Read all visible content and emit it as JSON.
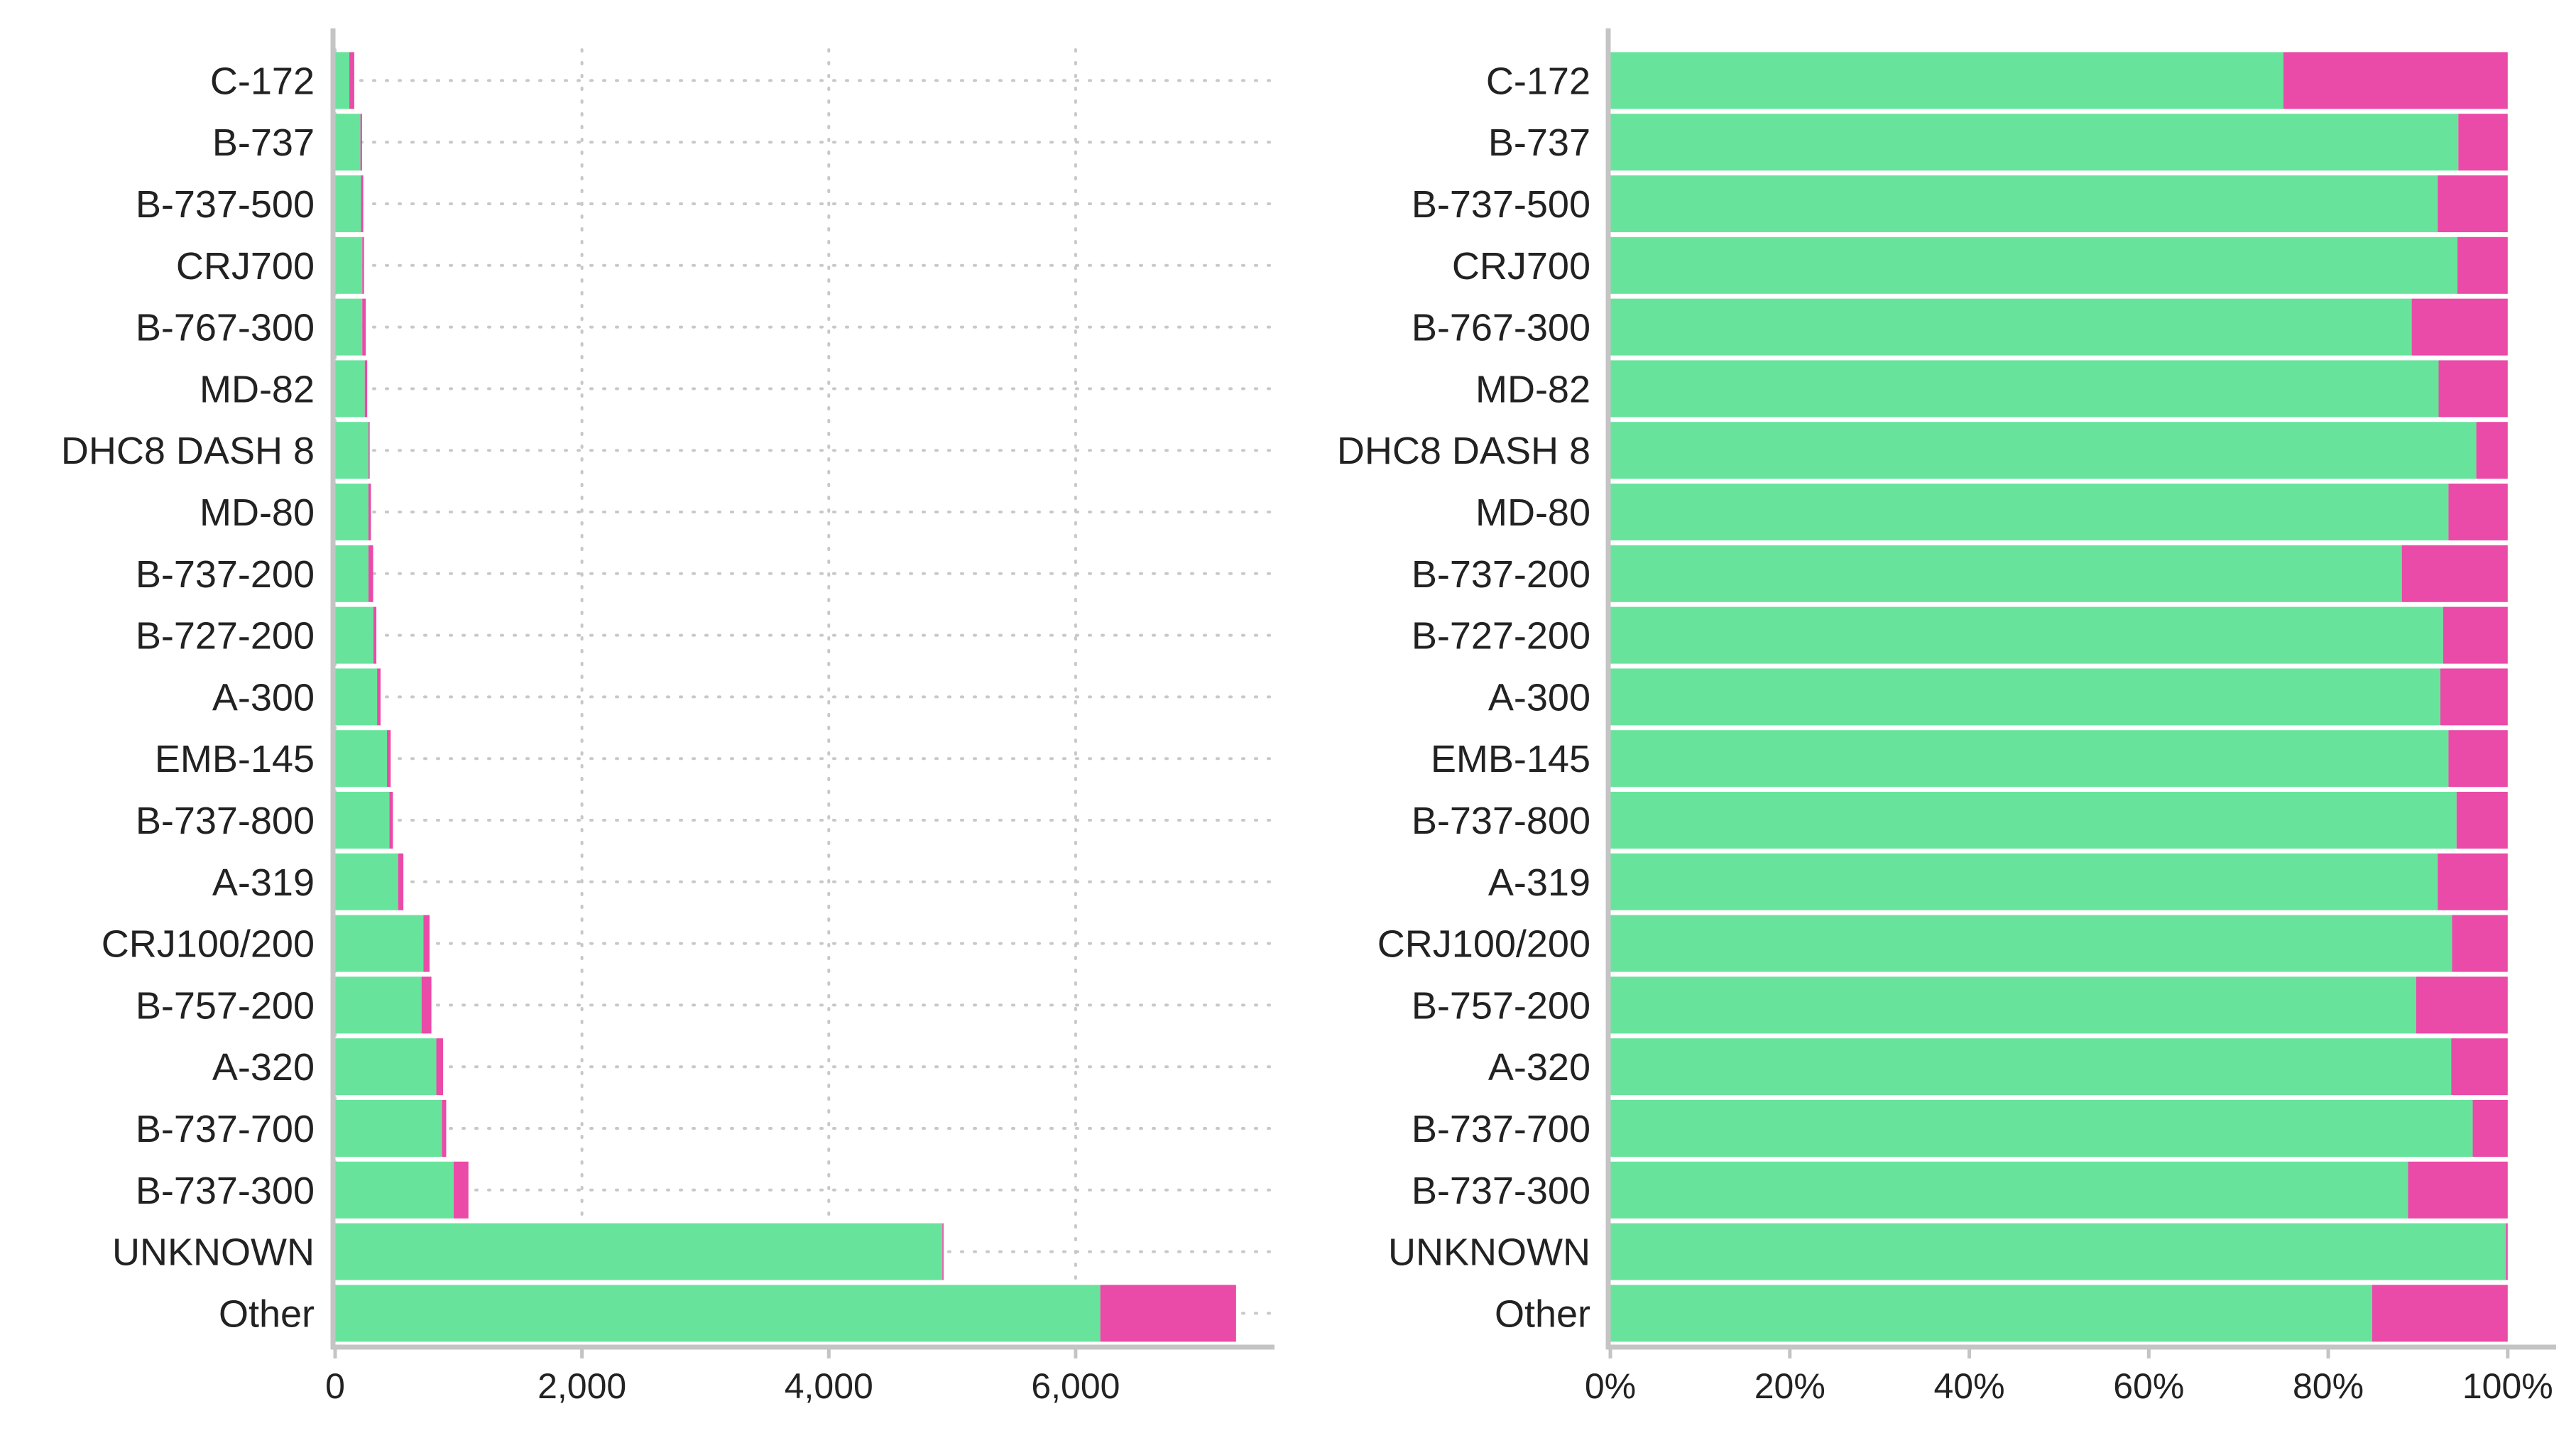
{
  "chart_data": [
    {
      "type": "bar",
      "orientation": "horizontal",
      "stacked": true,
      "title": "",
      "xlabel": "",
      "ylabel": "",
      "categories": [
        "C-172",
        "B-737",
        "B-737-500",
        "CRJ700",
        "B-767-300",
        "MD-82",
        "DHC8 DASH 8",
        "MD-80",
        "B-737-200",
        "B-727-200",
        "A-300",
        "EMB-145",
        "B-737-800",
        "A-319",
        "CRJ100/200",
        "B-757-200",
        "A-320",
        "B-737-700",
        "B-737-300",
        "UNKNOWN",
        "Other"
      ],
      "series": [
        {
          "color": "#68e39c",
          "values": [
            115,
            205,
            210,
            220,
            220,
            240,
            270,
            270,
            270,
            310,
            340,
            420,
            440,
            510,
            715,
            700,
            820,
            865,
            960,
            4920,
            6200
          ]
        },
        {
          "color": "#ea4aa8",
          "values": [
            40,
            13,
            18,
            14,
            28,
            20,
            10,
            20,
            38,
            24,
            28,
            30,
            28,
            43,
            50,
            80,
            55,
            35,
            120,
            10,
            1100
          ]
        }
      ],
      "xlim": [
        0,
        7600
      ],
      "xticks": [
        0,
        2000,
        4000,
        6000
      ],
      "xtick_labels": [
        "0",
        "2,000",
        "4,000",
        "6,000"
      ],
      "grid": "vertical dotted"
    },
    {
      "type": "bar",
      "orientation": "horizontal",
      "stacked": true,
      "normalized": true,
      "title": "",
      "xlabel": "",
      "ylabel": "",
      "categories": [
        "C-172",
        "B-737",
        "B-737-500",
        "CRJ700",
        "B-767-300",
        "MD-82",
        "DHC8 DASH 8",
        "MD-80",
        "B-737-200",
        "B-727-200",
        "A-300",
        "EMB-145",
        "B-737-800",
        "A-319",
        "CRJ100/200",
        "B-757-200",
        "A-320",
        "B-737-700",
        "B-737-300",
        "UNKNOWN",
        "Other"
      ],
      "series": [
        {
          "color": "#68e39c",
          "values": [
            0.75,
            0.945,
            0.922,
            0.944,
            0.893,
            0.923,
            0.965,
            0.934,
            0.882,
            0.928,
            0.925,
            0.934,
            0.943,
            0.922,
            0.938,
            0.898,
            0.937,
            0.961,
            0.889,
            0.998,
            0.849
          ]
        },
        {
          "color": "#ea4aa8",
          "values": [
            0.25,
            0.055,
            0.078,
            0.056,
            0.107,
            0.077,
            0.035,
            0.066,
            0.118,
            0.072,
            0.075,
            0.066,
            0.057,
            0.078,
            0.062,
            0.102,
            0.063,
            0.039,
            0.111,
            0.002,
            0.151
          ]
        }
      ],
      "xlim": [
        0,
        1.05
      ],
      "xticks": [
        0,
        0.2,
        0.4,
        0.6,
        0.8,
        1.0
      ],
      "xtick_labels": [
        "0%",
        "20%",
        "40%",
        "60%",
        "80%",
        "100%"
      ],
      "grid": "none"
    }
  ]
}
